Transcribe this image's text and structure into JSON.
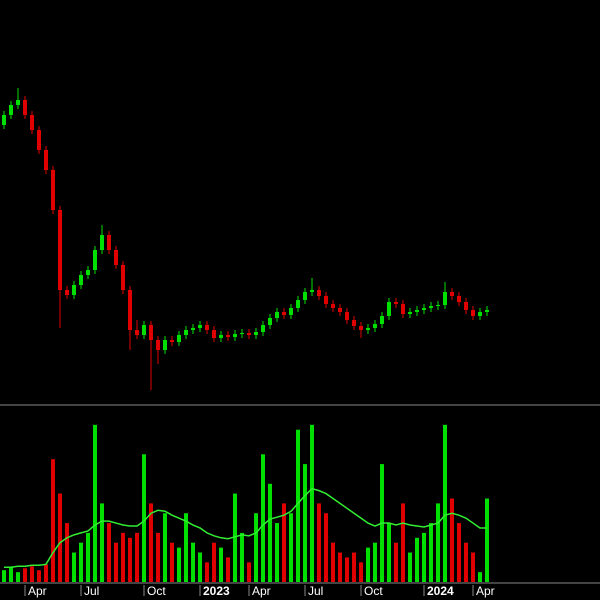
{
  "chart_data": {
    "type": "candlestick",
    "categories": [
      null,
      null,
      null,
      "Apr",
      null,
      null,
      null,
      null,
      null,
      null,
      null,
      "Jul",
      null,
      null,
      null,
      null,
      null,
      null,
      null,
      null,
      "Oct",
      null,
      null,
      null,
      null,
      null,
      null,
      null,
      "2023",
      null,
      null,
      null,
      null,
      null,
      null,
      "Apr",
      null,
      null,
      null,
      null,
      null,
      null,
      null,
      "Jul",
      null,
      null,
      null,
      null,
      null,
      null,
      null,
      "Oct",
      null,
      null,
      null,
      null,
      null,
      null,
      null,
      null,
      "2024",
      null,
      null,
      null,
      null,
      null,
      null,
      "Apr",
      null,
      null
    ],
    "open": [
      275,
      285,
      295,
      300,
      285,
      270,
      250,
      230,
      190,
      110,
      105,
      115,
      125,
      130,
      150,
      165,
      150,
      135,
      110,
      70,
      65,
      75,
      60,
      50,
      60,
      58,
      65,
      70,
      72,
      75,
      70,
      62,
      65,
      63,
      66,
      67,
      65,
      68,
      75,
      82,
      88,
      85,
      92,
      100,
      108,
      110,
      104,
      96,
      92,
      88,
      80,
      74,
      70,
      72,
      76,
      84,
      98,
      96,
      86,
      88,
      90,
      92,
      94,
      95,
      108,
      104,
      98,
      90,
      84,
      88
    ],
    "high": [
      289,
      299,
      312,
      304,
      289,
      274,
      254,
      234,
      194,
      114,
      119,
      129,
      134,
      154,
      175,
      169,
      154,
      139,
      114,
      80,
      79,
      79,
      64,
      64,
      64,
      69,
      74,
      76,
      79,
      79,
      74,
      69,
      69,
      70,
      71,
      71,
      72,
      79,
      86,
      92,
      92,
      96,
      104,
      112,
      122,
      114,
      108,
      100,
      96,
      92,
      84,
      78,
      76,
      80,
      88,
      102,
      102,
      100,
      92,
      94,
      96,
      98,
      99,
      118,
      112,
      108,
      102,
      94,
      92,
      94
    ],
    "low": [
      271,
      281,
      291,
      281,
      266,
      246,
      226,
      186,
      72,
      101,
      101,
      111,
      121,
      126,
      146,
      146,
      131,
      106,
      50,
      61,
      61,
      10,
      36,
      46,
      54,
      54,
      61,
      66,
      68,
      66,
      58,
      58,
      59,
      59,
      62,
      61,
      61,
      64,
      71,
      78,
      81,
      81,
      88,
      96,
      104,
      100,
      92,
      88,
      84,
      76,
      70,
      62,
      66,
      68,
      72,
      80,
      92,
      82,
      82,
      84,
      86,
      88,
      90,
      91,
      100,
      94,
      86,
      80,
      80,
      84
    ],
    "close": [
      285,
      295,
      300,
      285,
      270,
      250,
      230,
      190,
      110,
      105,
      115,
      125,
      130,
      150,
      165,
      150,
      135,
      110,
      70,
      65,
      75,
      60,
      50,
      60,
      58,
      65,
      70,
      72,
      75,
      70,
      62,
      65,
      63,
      66,
      67,
      65,
      68,
      75,
      82,
      88,
      85,
      92,
      100,
      108,
      110,
      104,
      96,
      92,
      88,
      80,
      74,
      70,
      72,
      76,
      84,
      98,
      96,
      86,
      88,
      90,
      92,
      94,
      95,
      108,
      104,
      98,
      90,
      84,
      88,
      90
    ],
    "ylim": [
      0,
      320
    ],
    "up_color": "#00e000",
    "down_color": "#e00000",
    "volume": {
      "values": [
        12,
        15,
        10,
        14,
        16,
        12,
        18,
        125,
        90,
        60,
        30,
        40,
        50,
        160,
        80,
        60,
        40,
        50,
        45,
        50,
        130,
        80,
        50,
        70,
        40,
        35,
        70,
        40,
        30,
        20,
        40,
        35,
        25,
        90,
        50,
        20,
        70,
        130,
        100,
        60,
        80,
        70,
        155,
        120,
        160,
        80,
        70,
        40,
        30,
        25,
        30,
        20,
        35,
        40,
        120,
        60,
        40,
        80,
        30,
        45,
        50,
        60,
        80,
        160,
        85,
        60,
        40,
        30,
        10,
        85
      ],
      "ma": [
        15,
        15,
        16,
        16,
        17,
        17,
        18,
        30,
        40,
        45,
        48,
        50,
        52,
        58,
        62,
        62,
        60,
        58,
        57,
        57,
        62,
        70,
        73,
        72,
        68,
        65,
        62,
        58,
        55,
        50,
        47,
        45,
        44,
        46,
        48,
        47,
        50,
        58,
        64,
        66,
        68,
        72,
        80,
        88,
        95,
        93,
        90,
        85,
        80,
        75,
        70,
        65,
        60,
        57,
        60,
        60,
        58,
        60,
        58,
        57,
        56,
        58,
        60,
        68,
        70,
        68,
        65,
        60,
        55,
        55
      ],
      "ma_color": "#33ee33",
      "ylim": [
        0,
        170
      ]
    }
  }
}
